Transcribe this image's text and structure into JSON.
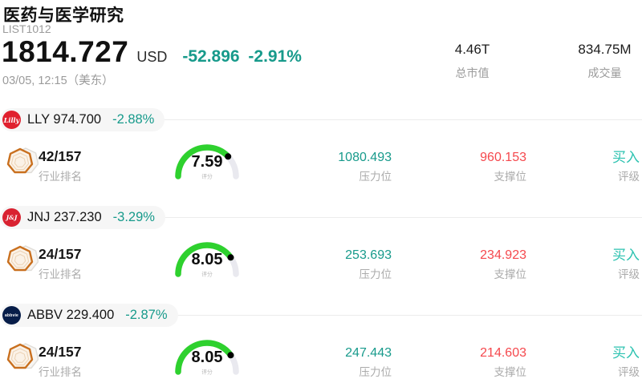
{
  "header": {
    "title": "医药与医学研究",
    "list_id": "LIST1012",
    "price": "1814.727",
    "currency": "USD",
    "change": "-52.896 -2.91%",
    "timestamp": "03/05, 12:15（美东）",
    "market_cap": {
      "value": "4.46T",
      "label": "总市值"
    },
    "volume": {
      "value": "834.75M",
      "label": "成交量"
    }
  },
  "colors": {
    "teal": "#179a8b",
    "teal-bright": "#2cc2b0",
    "red": "#f5484d",
    "gauge-green": "#2ed12e",
    "gauge-track": "#e9e9ef",
    "lly-logo-red": "#e0202e",
    "jnj-logo-red": "#d92231",
    "abbv-logo-navy": "#071d49",
    "badge-orange": "#c9701f"
  },
  "rows": [
    {
      "ticker": "LLY 974.700",
      "change": "-2.88%",
      "logo_text": "Lilly",
      "logo_bg": "#e0202e",
      "rank": "42/157",
      "rank_label": "行业排名",
      "score": 7.59,
      "score_label": "评分",
      "resistance": "1080.493",
      "resistance_label": "压力位",
      "support": "960.153",
      "support_label": "支撑位",
      "rating": "买入",
      "rating_label": "评级"
    },
    {
      "ticker": "JNJ 237.230",
      "change": "-3.29%",
      "logo_text": "J&J",
      "logo_bg": "#d92231",
      "rank": "24/157",
      "rank_label": "行业排名",
      "score": 8.05,
      "score_label": "评分",
      "resistance": "253.693",
      "resistance_label": "压力位",
      "support": "234.923",
      "support_label": "支撑位",
      "rating": "买入",
      "rating_label": "评级"
    },
    {
      "ticker": "ABBV 229.400",
      "change": "-2.87%",
      "logo_text": "abbvie",
      "logo_bg": "#071d49",
      "rank": "24/157",
      "rank_label": "行业排名",
      "score": 8.05,
      "score_label": "评分",
      "resistance": "247.443",
      "resistance_label": "压力位",
      "support": "214.603",
      "support_label": "支撑位",
      "rating": "买入",
      "rating_label": "评级"
    }
  ]
}
